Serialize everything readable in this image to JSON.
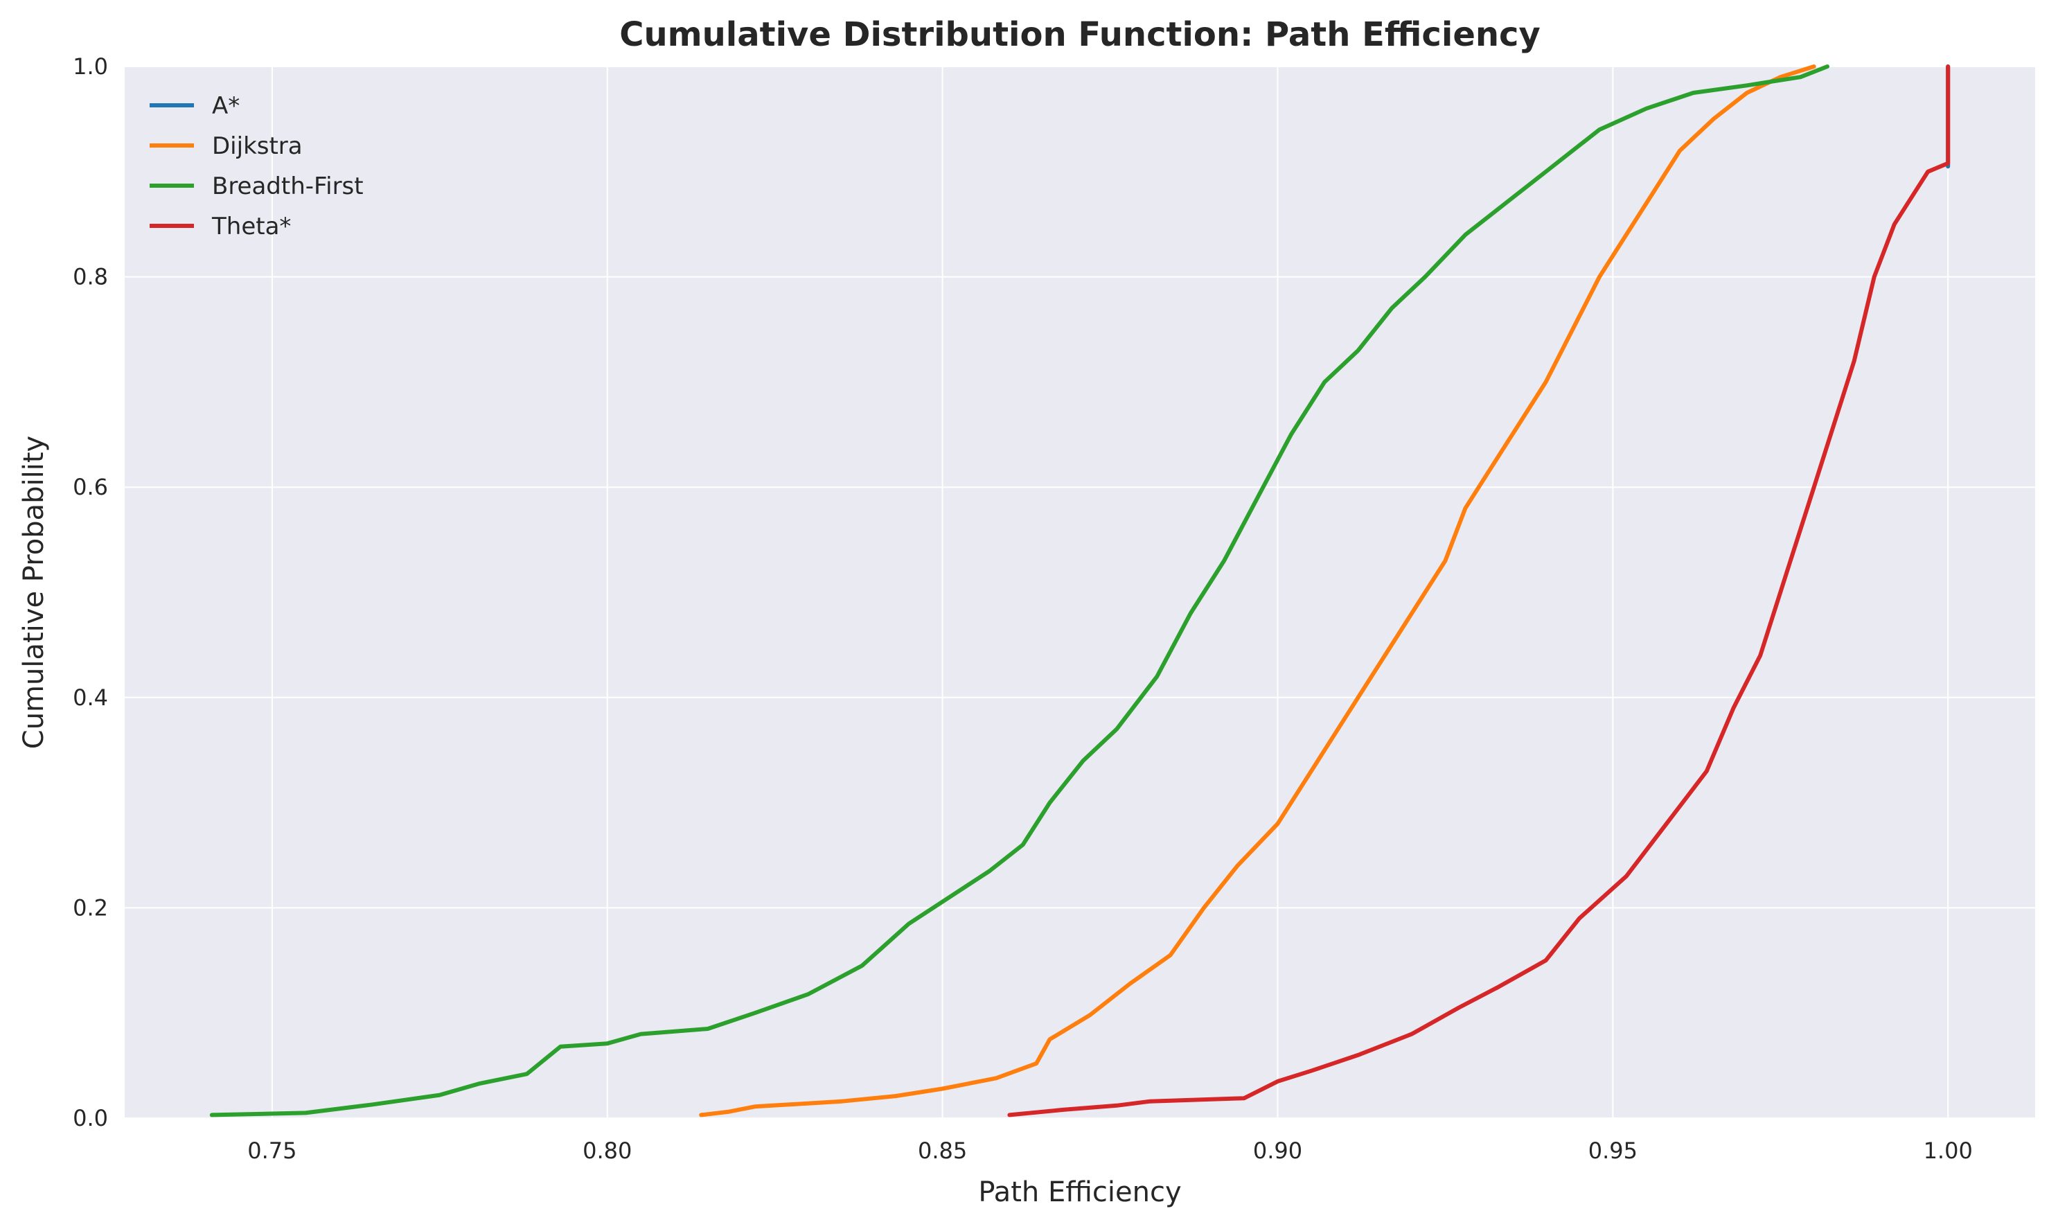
{
  "chart_data": {
    "type": "line",
    "title": "Cumulative Distribution Function: Path Efficiency",
    "xlabel": "Path Efficiency",
    "ylabel": "Cumulative Probability",
    "xlim": [
      0.728,
      1.013
    ],
    "ylim": [
      0.0,
      1.0
    ],
    "xticks": [
      "0.75",
      "0.80",
      "0.85",
      "0.90",
      "0.95",
      "1.00"
    ],
    "yticks": [
      "0.0",
      "0.2",
      "0.4",
      "0.6",
      "0.8",
      "1.0"
    ],
    "grid": true,
    "legend_position": "top-left",
    "colors": {
      "plot_background": "#eaeaf2",
      "grid": "#ffffff"
    },
    "series": [
      {
        "name": "A*",
        "color": "#1f77b4",
        "x": [
          1.0,
          1.0,
          1.0
        ],
        "y": [
          0.905,
          0.95,
          1.0
        ]
      },
      {
        "name": "Dijkstra",
        "color": "#ff7f0e",
        "x": [
          0.814,
          0.818,
          0.822,
          0.835,
          0.843,
          0.85,
          0.858,
          0.864,
          0.866,
          0.872,
          0.878,
          0.884,
          0.889,
          0.894,
          0.9,
          0.905,
          0.91,
          0.915,
          0.92,
          0.925,
          0.928,
          0.932,
          0.936,
          0.94,
          0.944,
          0.948,
          0.952,
          0.956,
          0.96,
          0.965,
          0.97,
          0.975,
          0.98
        ],
        "y": [
          0.003,
          0.006,
          0.011,
          0.016,
          0.021,
          0.028,
          0.038,
          0.052,
          0.075,
          0.098,
          0.128,
          0.155,
          0.2,
          0.24,
          0.28,
          0.33,
          0.38,
          0.43,
          0.48,
          0.53,
          0.58,
          0.62,
          0.66,
          0.7,
          0.75,
          0.8,
          0.84,
          0.88,
          0.92,
          0.95,
          0.975,
          0.99,
          1.0
        ]
      },
      {
        "name": "Breadth-First",
        "color": "#2ca02c",
        "x": [
          0.741,
          0.755,
          0.765,
          0.775,
          0.781,
          0.788,
          0.793,
          0.8,
          0.805,
          0.815,
          0.822,
          0.83,
          0.838,
          0.845,
          0.851,
          0.857,
          0.862,
          0.866,
          0.871,
          0.876,
          0.882,
          0.887,
          0.892,
          0.897,
          0.902,
          0.907,
          0.912,
          0.917,
          0.922,
          0.928,
          0.934,
          0.94,
          0.948,
          0.955,
          0.962,
          0.97,
          0.978,
          0.982
        ],
        "y": [
          0.003,
          0.005,
          0.013,
          0.022,
          0.033,
          0.042,
          0.068,
          0.071,
          0.08,
          0.085,
          0.1,
          0.118,
          0.145,
          0.185,
          0.21,
          0.235,
          0.26,
          0.3,
          0.34,
          0.37,
          0.42,
          0.48,
          0.53,
          0.59,
          0.65,
          0.7,
          0.73,
          0.77,
          0.8,
          0.84,
          0.87,
          0.9,
          0.94,
          0.96,
          0.975,
          0.982,
          0.99,
          1.0
        ]
      },
      {
        "name": "Theta*",
        "color": "#d62728",
        "x": [
          0.86,
          0.868,
          0.876,
          0.881,
          0.895,
          0.9,
          0.905,
          0.912,
          0.92,
          0.927,
          0.933,
          0.94,
          0.945,
          0.952,
          0.958,
          0.964,
          0.968,
          0.972,
          0.976,
          0.98,
          0.983,
          0.986,
          0.989,
          0.992,
          0.995,
          0.997,
          1.0,
          1.0
        ],
        "y": [
          0.003,
          0.008,
          0.012,
          0.016,
          0.019,
          0.035,
          0.045,
          0.06,
          0.08,
          0.105,
          0.125,
          0.15,
          0.19,
          0.23,
          0.28,
          0.33,
          0.39,
          0.44,
          0.52,
          0.6,
          0.66,
          0.72,
          0.8,
          0.85,
          0.88,
          0.9,
          0.908,
          1.0
        ]
      }
    ]
  }
}
